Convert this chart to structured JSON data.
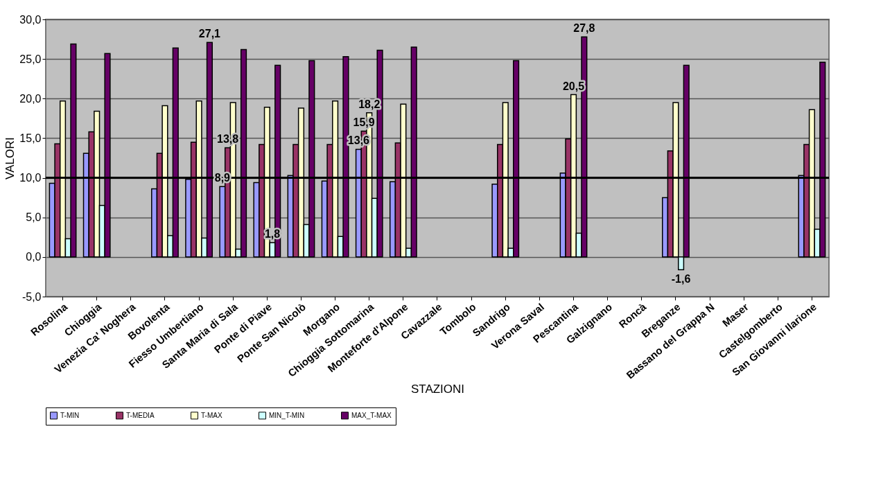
{
  "chart_data": {
    "type": "bar",
    "xlabel": "STAZIONI",
    "ylabel": "VALORI",
    "categories": [
      "Rosolina",
      "Chioggia",
      "Venezia Ca' Noghera",
      "Bovolenta",
      "Fiesso Umbertiano",
      "Santa Maria di Sala",
      "Ponte di Piave",
      "Ponte San Nicolò",
      "Morgano",
      "Chioggia Sottomarina",
      "Monteforte d'Alpone",
      "Cavazzale",
      "Tombolo",
      "Sandrigo",
      "Verona Saval",
      "Pescantina",
      "Galzignano",
      "Roncà",
      "Breganze",
      "Bassano del Grappa N",
      "Maser",
      "Castelgomberto",
      "San Giovanni Ilarione"
    ],
    "series": [
      {
        "name": "T-MIN",
        "color": "#9999ff",
        "values": [
          9.3,
          13.1,
          null,
          8.6,
          9.8,
          8.9,
          9.4,
          10.3,
          9.6,
          13.6,
          9.5,
          null,
          null,
          9.2,
          null,
          10.6,
          null,
          null,
          7.5,
          null,
          null,
          null,
          10.3
        ],
        "value_labels": [
          null,
          null,
          null,
          null,
          null,
          "8,9",
          null,
          null,
          null,
          "13,6",
          null,
          null,
          null,
          null,
          null,
          null,
          null,
          null,
          null,
          null,
          null,
          null,
          null
        ]
      },
      {
        "name": "T-MEDIA",
        "color": "#993366",
        "values": [
          14.3,
          15.8,
          null,
          13.1,
          14.5,
          13.8,
          14.2,
          14.2,
          14.2,
          15.9,
          14.4,
          null,
          null,
          14.2,
          null,
          14.9,
          null,
          null,
          13.4,
          null,
          null,
          null,
          14.2
        ],
        "value_labels": [
          null,
          null,
          null,
          null,
          null,
          "13,8",
          null,
          null,
          null,
          "15,9",
          null,
          null,
          null,
          null,
          null,
          null,
          null,
          null,
          null,
          null,
          null,
          null,
          null
        ]
      },
      {
        "name": "T-MAX",
        "color": "#ffffcc",
        "values": [
          19.7,
          18.4,
          null,
          19.1,
          19.7,
          19.5,
          18.9,
          18.8,
          19.7,
          18.2,
          19.3,
          null,
          null,
          19.5,
          null,
          20.5,
          null,
          null,
          19.5,
          null,
          null,
          null,
          18.6
        ],
        "value_labels": [
          null,
          null,
          null,
          null,
          null,
          null,
          null,
          null,
          null,
          "18,2",
          null,
          null,
          null,
          null,
          null,
          "20,5",
          null,
          null,
          null,
          null,
          null,
          null,
          null
        ]
      },
      {
        "name": "MIN_T-MIN",
        "color": "#ccffff",
        "values": [
          2.3,
          6.5,
          null,
          2.7,
          2.4,
          1.0,
          1.8,
          4.1,
          2.6,
          7.4,
          1.1,
          null,
          null,
          1.1,
          null,
          3.0,
          null,
          null,
          -1.6,
          null,
          null,
          null,
          3.5
        ],
        "value_labels": [
          null,
          null,
          null,
          null,
          null,
          null,
          "1,8",
          null,
          null,
          null,
          null,
          null,
          null,
          null,
          null,
          null,
          null,
          null,
          "-1,6",
          null,
          null,
          null,
          null
        ]
      },
      {
        "name": "MAX_T-MAX",
        "color": "#660066",
        "values": [
          26.9,
          25.7,
          null,
          26.4,
          27.1,
          26.2,
          24.2,
          24.8,
          25.3,
          26.1,
          26.5,
          null,
          null,
          24.8,
          null,
          27.8,
          null,
          null,
          24.2,
          null,
          null,
          null,
          24.6
        ],
        "value_labels": [
          null,
          null,
          null,
          null,
          "27,1",
          null,
          null,
          null,
          null,
          null,
          null,
          null,
          null,
          null,
          null,
          "27,8",
          null,
          null,
          null,
          null,
          null,
          null,
          null
        ]
      }
    ],
    "ylim": [
      -5,
      30
    ],
    "yticks": [
      {
        "value": -5,
        "label": "-5,0"
      },
      {
        "value": 0,
        "label": "0,0"
      },
      {
        "value": 5,
        "label": "5,0"
      },
      {
        "value": 10,
        "label": "10,0"
      },
      {
        "value": 15,
        "label": "15,0"
      },
      {
        "value": 20,
        "label": "20,0"
      },
      {
        "value": 25,
        "label": "25,0"
      },
      {
        "value": 30,
        "label": "30,0"
      }
    ],
    "ref_lines": [
      {
        "axis": "y",
        "value": 10,
        "color": "#000000"
      }
    ],
    "grid": "y",
    "legend": "bottom"
  }
}
